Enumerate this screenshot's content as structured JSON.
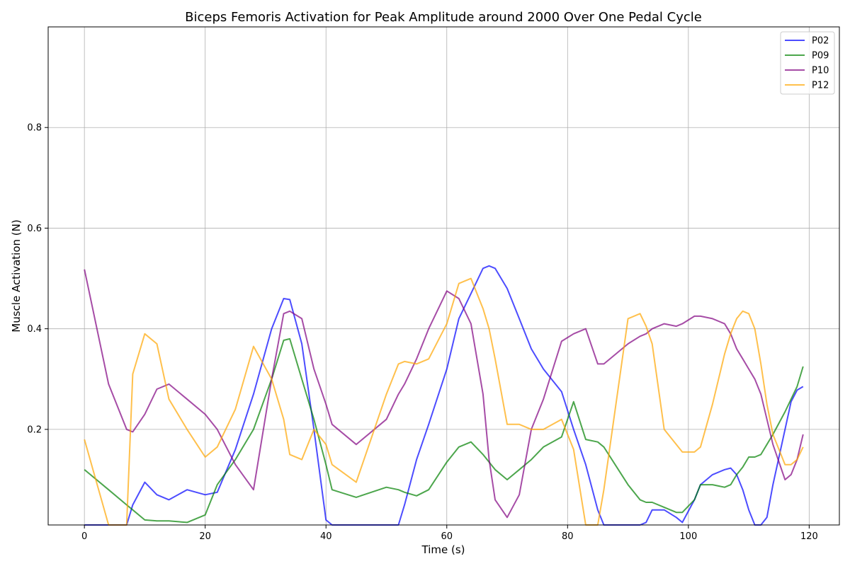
{
  "chart_data": {
    "type": "line",
    "title": "Biceps Femoris Activation for Peak Amplitude around 2000 Over One Pedal Cycle",
    "xlabel": "Time (s)",
    "ylabel": "Muscle Activation (N)",
    "xlim": [
      -6,
      125
    ],
    "ylim": [
      0.01,
      1.0
    ],
    "xticks": [
      0,
      20,
      40,
      60,
      80,
      100,
      120
    ],
    "yticks": [
      0.2,
      0.4,
      0.6,
      0.8
    ],
    "xtick_labels": [
      "0",
      "20",
      "40",
      "60",
      "80",
      "100",
      "120"
    ],
    "ytick_labels": [
      "0.2",
      "0.4",
      "0.6",
      "0.8"
    ],
    "grid": true,
    "legend_position": "top-right",
    "x": [
      0,
      4,
      7,
      8,
      10,
      12,
      14,
      17,
      20,
      22,
      25,
      28,
      31,
      33,
      34,
      36,
      38,
      40,
      41,
      45,
      50,
      52,
      53,
      55,
      57,
      60,
      62,
      64,
      66,
      67,
      68,
      70,
      72,
      74,
      76,
      79,
      81,
      83,
      85,
      86,
      90,
      92,
      93,
      94,
      96,
      98,
      99,
      101,
      102,
      104,
      106,
      107,
      108,
      109,
      110,
      111,
      112,
      113,
      114,
      116,
      117,
      118,
      119
    ],
    "series": [
      {
        "name": "P02",
        "color": "#0000ff",
        "values": [
          0.01,
          0.01,
          0.01,
          0.05,
          0.095,
          0.07,
          0.06,
          0.08,
          0.07,
          0.075,
          0.16,
          0.27,
          0.4,
          0.46,
          0.458,
          0.37,
          0.2,
          0.02,
          0.01,
          0.01,
          0.01,
          0.01,
          0.05,
          0.14,
          0.21,
          0.32,
          0.42,
          0.47,
          0.52,
          0.525,
          0.52,
          0.48,
          0.42,
          0.36,
          0.32,
          0.275,
          0.2,
          0.13,
          0.04,
          0.01,
          0.01,
          0.01,
          0.015,
          0.04,
          0.04,
          0.025,
          0.015,
          0.06,
          0.09,
          0.11,
          0.12,
          0.123,
          0.11,
          0.08,
          0.04,
          0.01,
          0.01,
          0.025,
          0.09,
          0.2,
          0.255,
          0.278,
          0.285
        ]
      },
      {
        "name": "P09",
        "color": "#008000",
        "values": [
          0.12,
          0.08,
          0.05,
          0.04,
          0.02,
          0.018,
          0.018,
          0.015,
          0.03,
          0.09,
          0.14,
          0.2,
          0.3,
          0.377,
          0.38,
          0.3,
          0.22,
          0.13,
          0.08,
          0.065,
          0.085,
          0.08,
          0.075,
          0.068,
          0.08,
          0.135,
          0.165,
          0.175,
          0.15,
          0.135,
          0.12,
          0.1,
          0.12,
          0.14,
          0.165,
          0.185,
          0.255,
          0.18,
          0.175,
          0.165,
          0.09,
          0.06,
          0.055,
          0.055,
          0.045,
          0.035,
          0.035,
          0.06,
          0.09,
          0.09,
          0.085,
          0.09,
          0.11,
          0.125,
          0.145,
          0.145,
          0.15,
          0.17,
          0.19,
          0.235,
          0.26,
          0.285,
          0.325
        ]
      },
      {
        "name": "P10",
        "color": "#800080",
        "values": [
          0.518,
          0.29,
          0.2,
          0.195,
          0.23,
          0.28,
          0.29,
          0.26,
          0.23,
          0.2,
          0.13,
          0.08,
          0.3,
          0.43,
          0.435,
          0.42,
          0.32,
          0.25,
          0.21,
          0.17,
          0.22,
          0.27,
          0.29,
          0.34,
          0.4,
          0.475,
          0.46,
          0.41,
          0.27,
          0.14,
          0.06,
          0.025,
          0.07,
          0.2,
          0.26,
          0.375,
          0.39,
          0.4,
          0.33,
          0.33,
          0.37,
          0.385,
          0.39,
          0.4,
          0.41,
          0.405,
          0.41,
          0.425,
          0.425,
          0.42,
          0.41,
          0.39,
          0.36,
          0.34,
          0.32,
          0.3,
          0.27,
          0.22,
          0.17,
          0.1,
          0.11,
          0.14,
          0.19
        ]
      },
      {
        "name": "P12",
        "color": "#ffa500",
        "values": [
          0.18,
          0.01,
          0.01,
          0.31,
          0.39,
          0.37,
          0.26,
          0.2,
          0.145,
          0.165,
          0.24,
          0.365,
          0.3,
          0.22,
          0.15,
          0.14,
          0.2,
          0.17,
          0.13,
          0.095,
          0.27,
          0.33,
          0.335,
          0.33,
          0.34,
          0.41,
          0.49,
          0.5,
          0.44,
          0.4,
          0.34,
          0.21,
          0.21,
          0.2,
          0.2,
          0.22,
          0.16,
          0.01,
          0.01,
          0.08,
          0.42,
          0.43,
          0.405,
          0.37,
          0.2,
          0.17,
          0.155,
          0.155,
          0.165,
          0.25,
          0.35,
          0.39,
          0.42,
          0.435,
          0.43,
          0.4,
          0.33,
          0.25,
          0.19,
          0.13,
          0.13,
          0.14,
          0.165
        ]
      }
    ]
  }
}
